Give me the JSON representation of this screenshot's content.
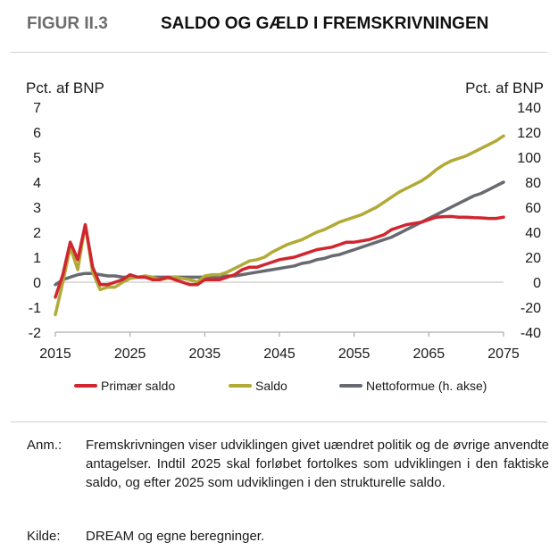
{
  "figure": {
    "number": "FIGUR II.3",
    "title": "SALDO OG GÆLD I FREMSKRIVNINGEN"
  },
  "chart_data": {
    "type": "line",
    "left_axis_label": "Pct. af BNP",
    "right_axis_label": "Pct. af BNP",
    "ylim_left": [
      -2,
      7
    ],
    "ylim_right": [
      -40,
      140
    ],
    "xlim": [
      2015,
      2075
    ],
    "x_ticks": [
      "2015",
      "2025",
      "2035",
      "2045",
      "2055",
      "2065",
      "2075"
    ],
    "y_ticks_left": [
      "7",
      "6",
      "5",
      "4",
      "3",
      "2",
      "1",
      "0",
      "-1",
      "-2"
    ],
    "y_ticks_right": [
      "140",
      "120",
      "100",
      "80",
      "60",
      "40",
      "20",
      "0",
      "-20",
      "-40"
    ],
    "series": [
      {
        "name": "Primær saldo",
        "axis": "left",
        "color": "#d0262f",
        "points": [
          [
            2015,
            -0.6
          ],
          [
            2016,
            0.3
          ],
          [
            2017,
            1.6
          ],
          [
            2018,
            0.9
          ],
          [
            2019,
            2.3
          ],
          [
            2020,
            0.6
          ],
          [
            2021,
            -0.1
          ],
          [
            2022,
            -0.1
          ],
          [
            2023,
            0.0
          ],
          [
            2024,
            0.1
          ],
          [
            2025,
            0.3
          ],
          [
            2026,
            0.2
          ],
          [
            2027,
            0.2
          ],
          [
            2028,
            0.1
          ],
          [
            2029,
            0.1
          ],
          [
            2030,
            0.2
          ],
          [
            2031,
            0.1
          ],
          [
            2032,
            0.0
          ],
          [
            2033,
            -0.1
          ],
          [
            2034,
            -0.1
          ],
          [
            2035,
            0.1
          ],
          [
            2036,
            0.1
          ],
          [
            2037,
            0.1
          ],
          [
            2038,
            0.2
          ],
          [
            2039,
            0.3
          ],
          [
            2040,
            0.5
          ],
          [
            2041,
            0.6
          ],
          [
            2042,
            0.6
          ],
          [
            2043,
            0.7
          ],
          [
            2044,
            0.8
          ],
          [
            2045,
            0.9
          ],
          [
            2046,
            0.95
          ],
          [
            2047,
            1.0
          ],
          [
            2048,
            1.1
          ],
          [
            2049,
            1.2
          ],
          [
            2050,
            1.3
          ],
          [
            2051,
            1.35
          ],
          [
            2052,
            1.4
          ],
          [
            2053,
            1.5
          ],
          [
            2054,
            1.6
          ],
          [
            2055,
            1.6
          ],
          [
            2056,
            1.65
          ],
          [
            2057,
            1.7
          ],
          [
            2058,
            1.8
          ],
          [
            2059,
            1.9
          ],
          [
            2060,
            2.1
          ],
          [
            2061,
            2.2
          ],
          [
            2062,
            2.3
          ],
          [
            2063,
            2.35
          ],
          [
            2064,
            2.4
          ],
          [
            2065,
            2.5
          ],
          [
            2066,
            2.6
          ],
          [
            2067,
            2.62
          ],
          [
            2068,
            2.63
          ],
          [
            2069,
            2.6
          ],
          [
            2070,
            2.6
          ],
          [
            2071,
            2.58
          ],
          [
            2072,
            2.57
          ],
          [
            2073,
            2.55
          ],
          [
            2074,
            2.55
          ],
          [
            2075,
            2.6
          ]
        ]
      },
      {
        "name": "Saldo",
        "axis": "left",
        "color": "#b2aa36",
        "points": [
          [
            2015,
            -1.3
          ],
          [
            2016,
            0.0
          ],
          [
            2017,
            1.4
          ],
          [
            2018,
            0.5
          ],
          [
            2019,
            2.3
          ],
          [
            2020,
            0.4
          ],
          [
            2021,
            -0.3
          ],
          [
            2022,
            -0.2
          ],
          [
            2023,
            -0.2
          ],
          [
            2024,
            0.0
          ],
          [
            2025,
            0.15
          ],
          [
            2026,
            0.2
          ],
          [
            2027,
            0.25
          ],
          [
            2028,
            0.2
          ],
          [
            2029,
            0.1
          ],
          [
            2030,
            0.15
          ],
          [
            2031,
            0.2
          ],
          [
            2032,
            0.15
          ],
          [
            2033,
            0.1
          ],
          [
            2034,
            0.0
          ],
          [
            2035,
            0.25
          ],
          [
            2036,
            0.3
          ],
          [
            2037,
            0.3
          ],
          [
            2038,
            0.4
          ],
          [
            2039,
            0.55
          ],
          [
            2040,
            0.7
          ],
          [
            2041,
            0.85
          ],
          [
            2042,
            0.9
          ],
          [
            2043,
            1.0
          ],
          [
            2044,
            1.2
          ],
          [
            2045,
            1.35
          ],
          [
            2046,
            1.5
          ],
          [
            2047,
            1.6
          ],
          [
            2048,
            1.7
          ],
          [
            2049,
            1.85
          ],
          [
            2050,
            2.0
          ],
          [
            2051,
            2.1
          ],
          [
            2052,
            2.25
          ],
          [
            2053,
            2.4
          ],
          [
            2054,
            2.5
          ],
          [
            2055,
            2.6
          ],
          [
            2056,
            2.7
          ],
          [
            2057,
            2.85
          ],
          [
            2058,
            3.0
          ],
          [
            2059,
            3.2
          ],
          [
            2060,
            3.4
          ],
          [
            2061,
            3.6
          ],
          [
            2062,
            3.75
          ],
          [
            2063,
            3.9
          ],
          [
            2064,
            4.05
          ],
          [
            2065,
            4.25
          ],
          [
            2066,
            4.5
          ],
          [
            2067,
            4.7
          ],
          [
            2068,
            4.85
          ],
          [
            2069,
            4.95
          ],
          [
            2070,
            5.05
          ],
          [
            2071,
            5.2
          ],
          [
            2072,
            5.35
          ],
          [
            2073,
            5.5
          ],
          [
            2074,
            5.65
          ],
          [
            2075,
            5.85
          ]
        ]
      },
      {
        "name": "Nettoformue (h. akse)",
        "axis": "right",
        "color": "#676a70",
        "points": [
          [
            2015,
            -2
          ],
          [
            2016,
            2
          ],
          [
            2017,
            4
          ],
          [
            2018,
            6
          ],
          [
            2019,
            7
          ],
          [
            2020,
            7
          ],
          [
            2021,
            6
          ],
          [
            2022,
            5
          ],
          [
            2023,
            5
          ],
          [
            2024,
            4
          ],
          [
            2025,
            4
          ],
          [
            2026,
            4
          ],
          [
            2027,
            4
          ],
          [
            2028,
            4
          ],
          [
            2029,
            4
          ],
          [
            2030,
            4
          ],
          [
            2031,
            4
          ],
          [
            2032,
            4
          ],
          [
            2033,
            4
          ],
          [
            2034,
            4
          ],
          [
            2035,
            4
          ],
          [
            2036,
            4
          ],
          [
            2037,
            4
          ],
          [
            2038,
            5
          ],
          [
            2039,
            5
          ],
          [
            2040,
            6
          ],
          [
            2041,
            7
          ],
          [
            2042,
            8
          ],
          [
            2043,
            9
          ],
          [
            2044,
            10
          ],
          [
            2045,
            11
          ],
          [
            2046,
            12
          ],
          [
            2047,
            13
          ],
          [
            2048,
            15
          ],
          [
            2049,
            16
          ],
          [
            2050,
            18
          ],
          [
            2051,
            19
          ],
          [
            2052,
            21
          ],
          [
            2053,
            22
          ],
          [
            2054,
            24
          ],
          [
            2055,
            26
          ],
          [
            2056,
            28
          ],
          [
            2057,
            30
          ],
          [
            2058,
            32
          ],
          [
            2059,
            34
          ],
          [
            2060,
            36
          ],
          [
            2061,
            39
          ],
          [
            2062,
            42
          ],
          [
            2063,
            45
          ],
          [
            2064,
            48
          ],
          [
            2065,
            51
          ],
          [
            2066,
            54
          ],
          [
            2067,
            57
          ],
          [
            2068,
            60
          ],
          [
            2069,
            63
          ],
          [
            2070,
            66
          ],
          [
            2071,
            69
          ],
          [
            2072,
            71
          ],
          [
            2073,
            74
          ],
          [
            2074,
            77
          ],
          [
            2075,
            80
          ]
        ]
      }
    ]
  },
  "note": {
    "label": "Anm.:",
    "text": "Fremskrivningen viser udviklingen givet uændret politik og de øvrige anvendte antagelser. Indtil 2025 skal forløbet fortolkes som udviklingen i den faktiske saldo, og efter 2025 som udviklingen i den strukturelle saldo."
  },
  "source": {
    "label": "Kilde:",
    "text": "DREAM og egne beregninger."
  }
}
